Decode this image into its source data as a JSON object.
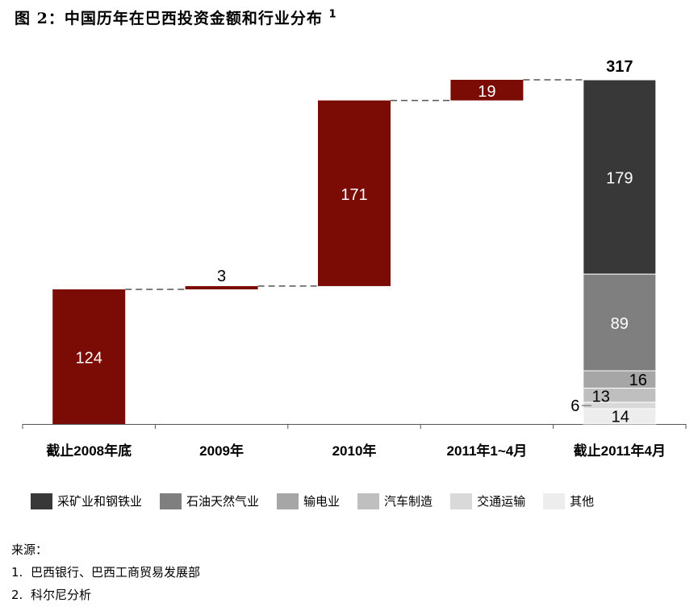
{
  "title": {
    "text": "图 2：中国历年在巴西投资金额和行业分布",
    "footnote_mark": "1"
  },
  "chart_data": {
    "type": "bar",
    "subtype": "waterfall-with-stacked-total",
    "categories": [
      "截止2008年底",
      "2009年",
      "2010年",
      "2011年1~4月",
      "截止2011年4月"
    ],
    "increments": [
      124,
      3,
      171,
      19
    ],
    "bar_color": "#7b0b05",
    "total": {
      "label": "317",
      "value": 317,
      "stack": [
        {
          "name": "采矿业和钢铁业",
          "value": 179,
          "color": "#383838",
          "label_color": "#ffffff"
        },
        {
          "name": "石油天然气业",
          "value": 89,
          "color": "#7f7f7f",
          "label_color": "#ffffff"
        },
        {
          "name": "输电业",
          "value": 16,
          "color": "#a6a6a6",
          "label_color": "#000000"
        },
        {
          "name": "汽车制造",
          "value": 13,
          "color": "#bfbfbf",
          "label_color": "#000000"
        },
        {
          "name": "交通运输",
          "value": 6,
          "color": "#d9d9d9",
          "label_color": "#000000"
        },
        {
          "name": "其他",
          "value": 14,
          "color": "#ededed",
          "label_color": "#000000"
        }
      ]
    },
    "ylim": [
      0,
      317
    ],
    "grid": false,
    "legend_position": "bottom"
  },
  "notes": {
    "source_label": "来源：",
    "items": [
      {
        "num": "1.",
        "text": "巴西银行、巴西工商贸易发展部"
      },
      {
        "num": "2.",
        "text": "科尔尼分析"
      }
    ]
  }
}
